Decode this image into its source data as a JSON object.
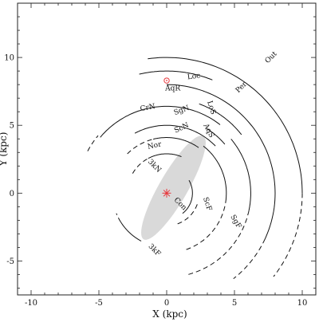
{
  "chart_data": {
    "type": "diagram",
    "xlabel": "X (kpc)",
    "ylabel": "Y (kpc)",
    "xlim": [
      -11,
      11
    ],
    "ylim": [
      -7.5,
      14
    ],
    "xticks": [
      -10,
      -5,
      0,
      5,
      10
    ],
    "yticks": [
      -5,
      0,
      5,
      10
    ],
    "galactic_center": {
      "x": 0,
      "y": 0,
      "color": "#e8383d"
    },
    "sun": {
      "x": 0,
      "y": 8.3,
      "color": "#e8383d"
    },
    "sun_label": "AqR",
    "bar": {
      "center": [
        0.5,
        0.4
      ],
      "semi_major": 4.4,
      "semi_minor": 1.05,
      "angle_deg": 60,
      "color": "#d9d9d9"
    },
    "arms": [
      {
        "name": "Out",
        "label_pos": [
          7.7,
          10.0
        ],
        "label_rot": 45,
        "segments": [
          {
            "r": 10.0,
            "from": 98,
            "to": 0,
            "style": "solid"
          },
          {
            "r": 10.0,
            "from": 0,
            "to": -38,
            "style": "dashed"
          }
        ]
      },
      {
        "name": "Per",
        "label_pos": [
          5.5,
          7.8
        ],
        "label_rot": 45,
        "segments": [
          {
            "r": 8.0,
            "from": 90,
            "to": -25,
            "style": "solid"
          },
          {
            "r": 8.0,
            "from": -25,
            "to": -52,
            "style": "dashed"
          }
        ]
      },
      {
        "name": "Loc",
        "label_pos": [
          2.0,
          8.6
        ],
        "label_rot": 8,
        "segments": [
          {
            "r": 9.0,
            "from": 103,
            "to": 68,
            "style": "solid"
          }
        ]
      },
      {
        "name": "LoS",
        "label_pos": [
          3.3,
          6.3
        ],
        "label_rot": -72,
        "segments": [
          {
            "r": 7.0,
            "from": 70,
            "to": 38,
            "style": "solid"
          }
        ]
      },
      {
        "name": "SgN",
        "label_pos": [
          1.1,
          6.1
        ],
        "label_rot": 20,
        "segments": [
          {
            "r": 6.4,
            "from": 140,
            "to": 52,
            "style": "solid"
          }
        ]
      },
      {
        "name": "CrN",
        "label_pos": [
          -1.4,
          6.3
        ],
        "label_rot": 10,
        "segments": [
          {
            "r": 6.6,
            "from": 152,
            "to": 140,
            "style": "dashed"
          }
        ]
      },
      {
        "name": "AqS",
        "label_pos": [
          3.1,
          4.6
        ],
        "label_rot": -62,
        "segments": [
          {
            "r": 5.6,
            "from": 58,
            "to": 40,
            "style": "solid"
          }
        ]
      },
      {
        "name": "SgF",
        "label_pos": [
          5.1,
          -2.1
        ],
        "label_rot": -60,
        "segments": [
          {
            "r": 6.2,
            "from": 40,
            "to": -12,
            "style": "solid"
          },
          {
            "r": 6.2,
            "from": -12,
            "to": -75,
            "style": "dashed"
          }
        ]
      },
      {
        "name": "ScN",
        "label_pos": [
          1.1,
          4.8
        ],
        "label_rot": 25,
        "segments": [
          {
            "r": 5.0,
            "from": 118,
            "to": 44,
            "style": "solid"
          }
        ]
      },
      {
        "name": "ScF",
        "label_pos": [
          3.0,
          -0.8
        ],
        "label_rot": -72,
        "segments": [
          {
            "r": 4.4,
            "from": 52,
            "to": -5,
            "style": "solid"
          },
          {
            "r": 4.4,
            "from": -5,
            "to": -72,
            "style": "dashed"
          }
        ]
      },
      {
        "name": "Nor",
        "label_pos": [
          -0.9,
          3.5
        ],
        "label_rot": 12,
        "segments": [
          {
            "r": 4.1,
            "from": 135,
            "to": 104,
            "style": "dashed"
          },
          {
            "r": 4.1,
            "from": 104,
            "to": 55,
            "style": "solid"
          }
        ]
      },
      {
        "name": "3kN",
        "label_pos": [
          -0.9,
          2.0
        ],
        "label_rot": -45,
        "segments": [
          {
            "r": 2.9,
            "from": 150,
            "to": 118,
            "style": "dashed"
          },
          {
            "r": 2.9,
            "from": 118,
            "to": 68,
            "style": "solid"
          }
        ]
      },
      {
        "name": "Con",
        "label_pos": [
          1.0,
          -0.8
        ],
        "label_rot": -45,
        "segments": [
          {
            "r": 1.9,
            "from": 30,
            "to": -52,
            "style": "solid"
          },
          {
            "r": 2.4,
            "from": -20,
            "to": -75,
            "style": "dashed"
          }
        ]
      },
      {
        "name": "3kF",
        "label_pos": [
          -0.9,
          -4.2
        ],
        "label_rot": -45,
        "segments": [
          {
            "r": 4.0,
            "from": -118,
            "to": -148,
            "style": "solid"
          },
          {
            "r": 4.0,
            "from": -148,
            "to": -158,
            "style": "dashed"
          }
        ]
      }
    ]
  }
}
